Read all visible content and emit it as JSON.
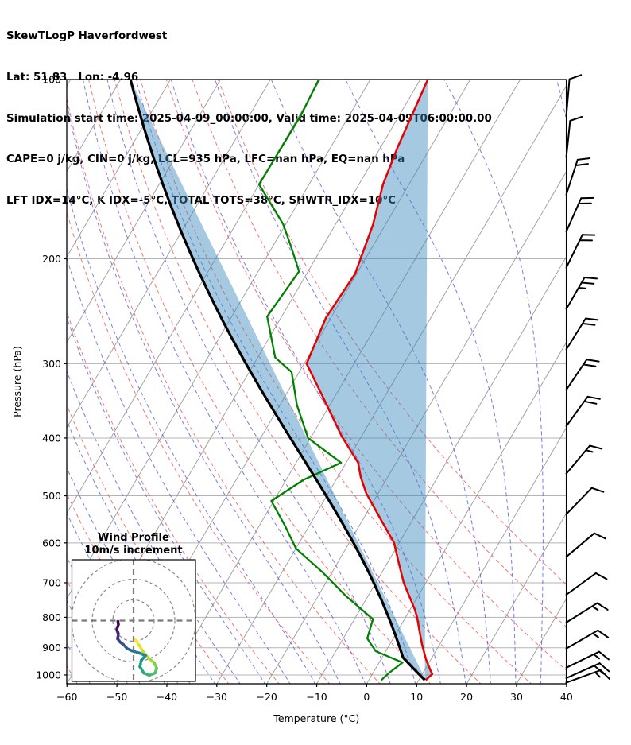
{
  "header": {
    "title": "SkewTLogP Haverfordwest",
    "location": "Lat: 51.83   Lon: -4.96",
    "times": "Simulation start time: 2025-04-09_00:00:00, Valid time: 2025-04-09T06:00:00.00",
    "indices1": "CAPE=0 j/kg, CIN=0 j/kg, LCL=935 hPa, LFC=nan hPa, EQ=nan hPa",
    "indices2": "LFT IDX=14°C, K IDX=-5°C, TOTAL TOTS=38°C, SHWTR_IDX=10°C"
  },
  "axes": {
    "pressure_label": "Pressure (hPa)",
    "temperature_label": "Temperature (°C)",
    "pressure_ticks": [
      100,
      200,
      300,
      400,
      500,
      600,
      700,
      800,
      900,
      1000
    ],
    "pressure_tick_labels": [
      "100",
      "200",
      "300",
      "400",
      "500",
      "600",
      "700",
      "800",
      "900",
      "1000"
    ],
    "temperature_ticks": [
      -60,
      -50,
      -40,
      -30,
      -20,
      -10,
      0,
      10,
      20,
      30,
      40
    ],
    "temperature_tick_labels": [
      "−60",
      "−50",
      "−40",
      "−30",
      "−20",
      "−10",
      "0",
      "10",
      "20",
      "30",
      "40"
    ]
  },
  "chart_data": {
    "type": "skewt_logp_sounding",
    "pressure_range_hpa": [
      100,
      1040
    ],
    "temperature_range_c": [
      -60,
      40
    ],
    "temperature_profile": {
      "name": "temperature",
      "color": "#e60000",
      "points_p_t": [
        [
          1020,
          11.4
        ],
        [
          996,
          12.0
        ],
        [
          984,
          11.3
        ],
        [
          941,
          9.0
        ],
        [
          887,
          6.4
        ],
        [
          850,
          4.7
        ],
        [
          800,
          2.3
        ],
        [
          777,
          1.0
        ],
        [
          700,
          -4.4
        ],
        [
          650,
          -7.6
        ],
        [
          600,
          -11.0
        ],
        [
          550,
          -16.2
        ],
        [
          495,
          -22.4
        ],
        [
          465,
          -25.4
        ],
        [
          440,
          -27.6
        ],
        [
          397,
          -34.0
        ],
        [
          342,
          -42.2
        ],
        [
          300,
          -49.5
        ],
        [
          251,
          -51.0
        ],
        [
          212,
          -50.3
        ],
        [
          175,
          -52.5
        ],
        [
          150,
          -55.2
        ],
        [
          130,
          -56.6
        ],
        [
          100,
          -58.5
        ]
      ]
    },
    "dewpoint_profile": {
      "name": "dewpoint",
      "color": "#008000",
      "points_p_t": [
        [
          1020,
          2.5
        ],
        [
          995,
          3.1
        ],
        [
          953,
          4.7
        ],
        [
          912,
          -2.0
        ],
        [
          868,
          -5.2
        ],
        [
          806,
          -6.3
        ],
        [
          737,
          -14.4
        ],
        [
          672,
          -21.9
        ],
        [
          613,
          -30.0
        ],
        [
          560,
          -35.0
        ],
        [
          510,
          -40.5
        ],
        [
          470,
          -36.5
        ],
        [
          440,
          -31.0
        ],
        [
          400,
          -40.5
        ],
        [
          352,
          -46.6
        ],
        [
          310,
          -51.5
        ],
        [
          293,
          -56.5
        ],
        [
          250,
          -62.9
        ],
        [
          210,
          -61.8
        ],
        [
          190,
          -66.5
        ],
        [
          175,
          -70.5
        ],
        [
          150,
          -80.0
        ],
        [
          115,
          -79.7
        ],
        [
          100,
          -80.3
        ]
      ]
    },
    "parcel_profile": {
      "name": "surface-parcel",
      "color": "#000000",
      "surface_pressure_hpa": 1020,
      "surface_temp_c": 11.2,
      "lcl_pressure_hpa": 935
    },
    "negative_area_fill": {
      "color": "#3a87bf",
      "opacity": 0.45
    },
    "reference_lines": {
      "isotherms": {
        "color": "#9a9a9a",
        "min_c": -130,
        "max_c": 40,
        "step_c": 10
      },
      "dry_adiabats": {
        "color": "#ee5555",
        "min_c": -60,
        "max_c": 60,
        "step_c": 10
      },
      "moist_adiabats": {
        "color": "#5050d8",
        "min_c": -60,
        "max_c": 40,
        "step_c": 5
      },
      "pressure_gridlines": {
        "color": "#b3b3b3"
      }
    },
    "wind_barbs": {
      "full_barb_ms": 10,
      "levels": [
        {
          "p": 115,
          "angle": 85,
          "ticks": 1.0
        },
        {
          "p": 135,
          "angle": 84,
          "ticks": 1.0
        },
        {
          "p": 156,
          "angle": 72,
          "ticks": 2.0
        },
        {
          "p": 180,
          "angle": 66,
          "ticks": 2.0
        },
        {
          "p": 207,
          "angle": 64,
          "ticks": 2.0
        },
        {
          "p": 243,
          "angle": 60,
          "ticks": 2.5
        },
        {
          "p": 284,
          "angle": 58,
          "ticks": 2.0
        },
        {
          "p": 332,
          "angle": 56,
          "ticks": 2.0
        },
        {
          "p": 382,
          "angle": 54,
          "ticks": 2.0
        },
        {
          "p": 459,
          "angle": 50,
          "ticks": 1.5
        },
        {
          "p": 537,
          "angle": 46,
          "ticks": 1.0
        },
        {
          "p": 633,
          "angle": 40,
          "ticks": 1.0
        },
        {
          "p": 733,
          "angle": 36,
          "ticks": 1.0
        },
        {
          "p": 816,
          "angle": 32,
          "ticks": 1.5
        },
        {
          "p": 903,
          "angle": 30,
          "ticks": 1.5
        },
        {
          "p": 972,
          "angle": 26,
          "ticks": 1.5
        },
        {
          "p": 1012,
          "angle": 24,
          "ticks": 2.0
        },
        {
          "p": 1030,
          "angle": 20,
          "ticks": 1.5
        }
      ]
    },
    "hodograph": {
      "title1": "Wind Profile",
      "title2": "10m/s increment",
      "ring_radii_ms": [
        10,
        20,
        30
      ],
      "path_uv_ms": [
        [
          0.8,
          9.2
        ],
        [
          2.7,
          11.9
        ],
        [
          4.6,
          15.0
        ],
        [
          7.3,
          18.1
        ],
        [
          10.0,
          20.4
        ],
        [
          11.2,
          23.1
        ],
        [
          10.4,
          25.4
        ],
        [
          7.7,
          26.5
        ],
        [
          5.0,
          25.4
        ],
        [
          3.1,
          22.3
        ],
        [
          3.8,
          19.2
        ],
        [
          5.8,
          16.9
        ],
        [
          3.1,
          15.8
        ],
        [
          -0.8,
          14.6
        ],
        [
          -3.1,
          13.5
        ],
        [
          -5.0,
          11.5
        ],
        [
          -6.5,
          10.4
        ],
        [
          -7.7,
          8.8
        ],
        [
          -7.3,
          6.5
        ],
        [
          -8.1,
          4.2
        ],
        [
          -7.3,
          1.9
        ],
        [
          -7.7,
          -0.4
        ]
      ],
      "colormap_surface_to_top": [
        "#fde725",
        "#a0da39",
        "#4ac16d",
        "#1fa187",
        "#277f8e",
        "#365c8d",
        "#46327e",
        "#440154"
      ]
    }
  }
}
